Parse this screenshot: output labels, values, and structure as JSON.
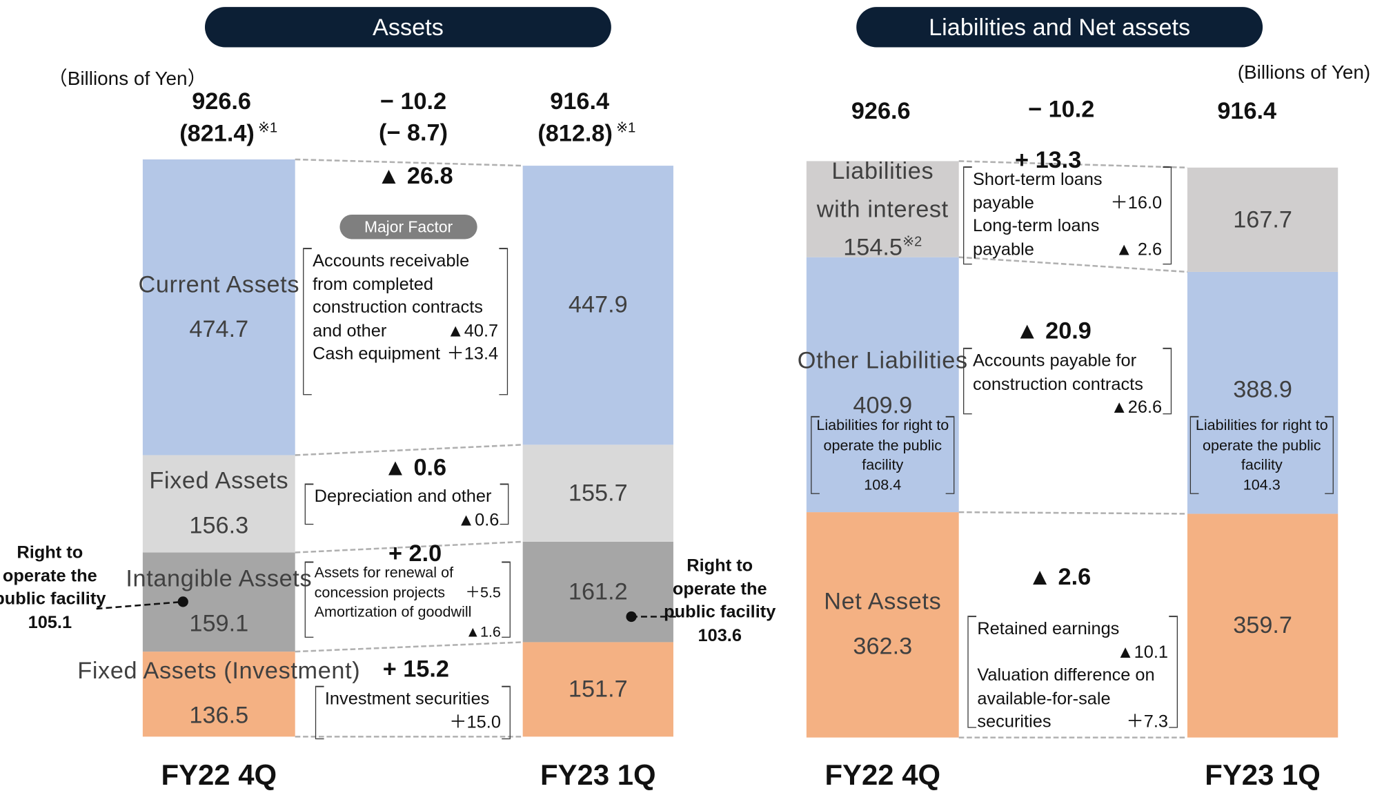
{
  "chart_data": [
    {
      "type": "bar",
      "stacked": true,
      "title": "Assets",
      "unit": "（Billions of Yen）",
      "categories": [
        "FY22 4Q",
        "FY23 1Q"
      ],
      "totals": [
        926.6,
        916.4
      ],
      "totals_sub": {
        "values": [
          821.4,
          812.8
        ],
        "value_labels": [
          "(821.4)",
          "(812.8)"
        ],
        "note": "※1"
      },
      "change": {
        "value": -10.2,
        "label": "− 10.2"
      },
      "change_sub": {
        "value": -8.7,
        "label": "(− 8.7)"
      },
      "ylim": [
        0,
        926.6
      ],
      "series": [
        {
          "name": "Current Assets",
          "color": "#b4c7e7",
          "values": [
            474.7,
            447.9
          ]
        },
        {
          "name": "Fixed Assets",
          "color": "#d9d9d9",
          "values": [
            156.3,
            155.7
          ]
        },
        {
          "name": "Intangible Assets",
          "color": "#a6a6a6",
          "values": [
            159.1,
            161.2
          ]
        },
        {
          "name": "Fixed Assets (Investment)",
          "color": "#f4b183",
          "values": [
            136.5,
            151.7
          ]
        }
      ],
      "factor_heading": "Major Factor",
      "segment_changes": [
        {
          "value": -26.8,
          "label": "▲ 26.8",
          "factors": [
            {
              "text": "Accounts receivable from completed construction contracts and other",
              "amount": {
                "value": -40.7,
                "label": "▲40.7"
              }
            },
            {
              "text": "Cash equipment",
              "amount": {
                "value": 13.4,
                "label": "＋13.4"
              }
            }
          ]
        },
        {
          "value": -0.6,
          "label": "▲ 0.6",
          "factors": [
            {
              "text": "Depreciation and other",
              "amount": {
                "value": -0.6,
                "label": "▲0.6"
              }
            }
          ]
        },
        {
          "value": 2.0,
          "label": "+ 2.0",
          "factors": [
            {
              "text": "Assets for renewal of concession projects",
              "amount": {
                "value": 5.5,
                "label": "＋5.5"
              }
            },
            {
              "text": "Amortization of goodwill",
              "amount": {
                "value": -1.6,
                "label": "▲1.6"
              }
            }
          ]
        },
        {
          "value": 15.2,
          "label": "+ 15.2",
          "factors": [
            {
              "text": "Investment securities",
              "amount": {
                "value": 15.0,
                "label": "＋15.0"
              }
            }
          ]
        }
      ],
      "callouts": [
        {
          "text": "Right to operate the public facility",
          "value": 105.1
        },
        {
          "text": "Right to operate the public facility",
          "value": 103.6
        }
      ]
    },
    {
      "type": "bar",
      "stacked": true,
      "title": "Liabilities and Net assets",
      "unit": "(Billions of Yen)",
      "categories": [
        "FY22 4Q",
        "FY23 1Q"
      ],
      "totals": [
        926.6,
        916.4
      ],
      "change": {
        "value": -10.2,
        "label": "− 10.2"
      },
      "ylim": [
        0,
        926.6
      ],
      "series": [
        {
          "name": "Liabilities with interest",
          "color": "#d0cece",
          "values": [
            154.5,
            167.7
          ],
          "note": "※2"
        },
        {
          "name": "Other Liabilities",
          "color": "#b4c7e7",
          "values": [
            409.9,
            388.9
          ],
          "inner_boxes": [
            {
              "text": "Liabilities for right to operate the public facility",
              "value": 108.4
            },
            {
              "text": "Liabilities for right to operate the public facility",
              "value": 104.3
            }
          ]
        },
        {
          "name": "Net Assets",
          "color": "#f4b183",
          "values": [
            362.3,
            359.7
          ]
        }
      ],
      "segment_changes": [
        {
          "value": 13.3,
          "label": "+ 13.3",
          "factors": [
            {
              "text": "Short-term loans payable",
              "amount": {
                "value": 16.0,
                "label": "＋16.0"
              }
            },
            {
              "text": "Long-term loans payable",
              "amount": {
                "value": -2.6,
                "label": "▲ 2.6"
              }
            }
          ]
        },
        {
          "value": -20.9,
          "label": "▲ 20.9",
          "factors": [
            {
              "text": "Accounts payable for construction contracts",
              "amount": {
                "value": -26.6,
                "label": "▲26.6"
              }
            }
          ]
        },
        {
          "value": -2.6,
          "label": "▲ 2.6",
          "factors": [
            {
              "text": "Retained earnings",
              "amount": {
                "value": -10.1,
                "label": "▲10.1"
              }
            },
            {
              "text": "Valuation difference on available-for-sale securities",
              "amount": {
                "value": 7.3,
                "label": "＋7.3"
              }
            }
          ]
        }
      ]
    }
  ]
}
